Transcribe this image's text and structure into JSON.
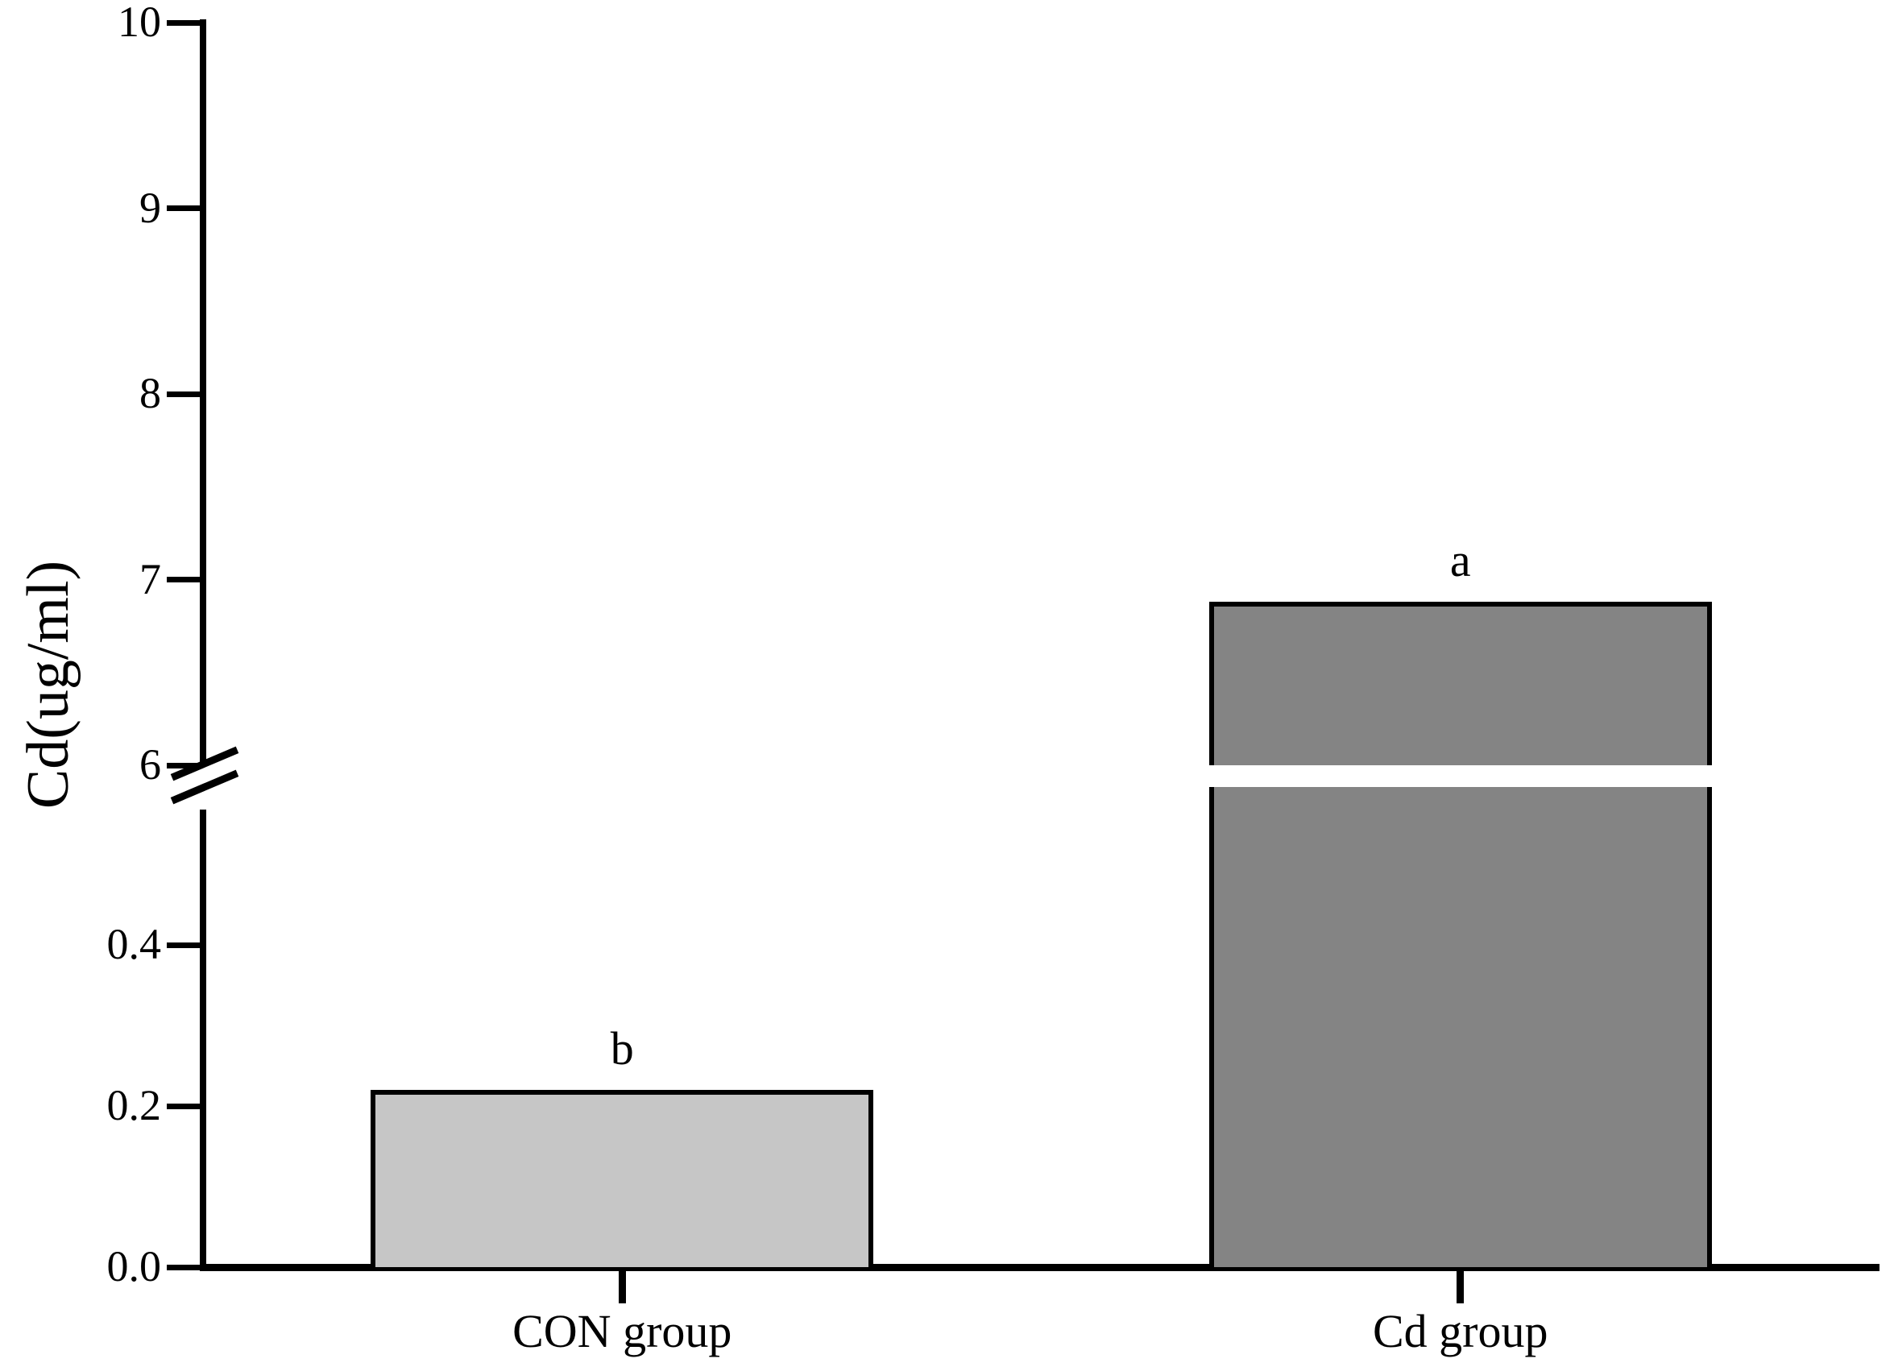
{
  "chart_data": {
    "type": "bar",
    "title": "",
    "xlabel": "",
    "ylabel": "Cd(ug/ml)",
    "categories": [
      "CON group",
      "Cd group"
    ],
    "values": [
      0.22,
      6.88
    ],
    "significance_labels": [
      "b",
      "a"
    ],
    "bar_fill_colors": [
      "#c6c6c6",
      "#848484"
    ],
    "bar_border_color": "#000000",
    "grid": false,
    "legend_position": "none",
    "y_axis": {
      "broken": true,
      "break_between_values": [
        0.57,
        6
      ],
      "lower_ticks": [
        "0.0",
        "0.2",
        "0.4"
      ],
      "upper_ticks": [
        "6",
        "7",
        "8",
        "9",
        "10"
      ],
      "lower_range": [
        0.0,
        0.57
      ],
      "upper_range": [
        6,
        10
      ]
    }
  }
}
